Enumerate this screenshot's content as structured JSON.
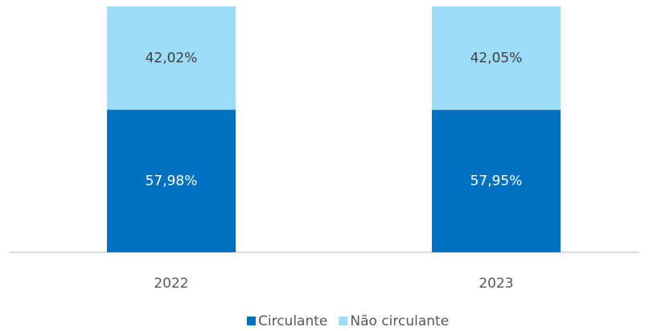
{
  "chart_data": {
    "type": "stacked_bar",
    "categories": [
      "2022",
      "2023"
    ],
    "ylim": [
      0,
      100
    ],
    "legend": "bottom",
    "series": [
      {
        "name": "Circulante",
        "color": "#0070c0",
        "values": [
          57.98,
          57.95
        ],
        "value_labels": [
          "57,98%",
          "57,95%"
        ]
      },
      {
        "name": "Não circulante",
        "color": "#9ddcf6",
        "values": [
          42.02,
          42.05
        ],
        "value_labels": [
          "42,02%",
          "42,05%"
        ]
      }
    ]
  }
}
